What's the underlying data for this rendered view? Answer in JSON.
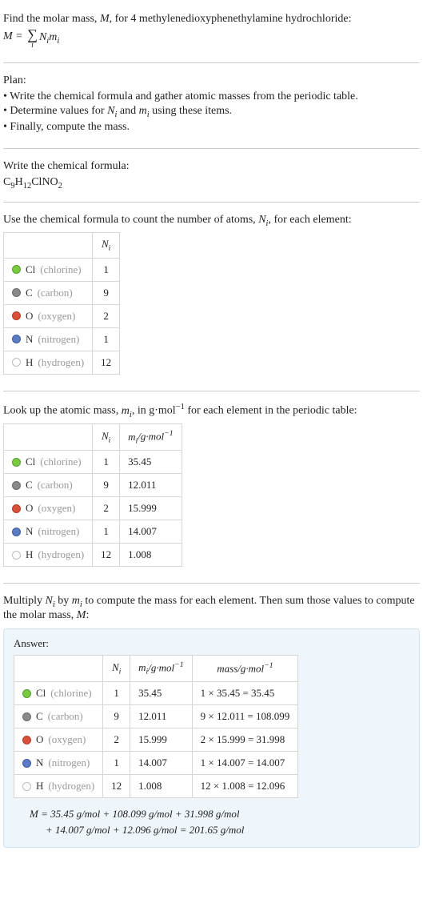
{
  "intro": {
    "line1_prefix": "Find the molar mass, ",
    "M": "M",
    "line1_mid": ", for 4 methylenedioxyphenethylamine hydrochloride:",
    "eq_lhs": "M = ",
    "eq_sigma": "∑",
    "eq_idx": "i",
    "eq_rhs_N": "N",
    "eq_rhs_m": "m"
  },
  "plan": {
    "heading": "Plan:",
    "items": [
      "Write the chemical formula and gather atomic masses from the periodic table.",
      "Determine values for N_i and m_i using these items.",
      "Finally, compute the mass."
    ],
    "item2_prefix": "Determine values for ",
    "item2_N": "N",
    "item2_and": " and ",
    "item2_m": "m",
    "item2_suffix": " using these items."
  },
  "formula_section": {
    "heading": "Write the chemical formula:",
    "formula_parts": [
      "C",
      "9",
      "H",
      "12",
      "ClNO",
      "2"
    ]
  },
  "count_section": {
    "heading_prefix": "Use the chemical formula to count the number of atoms, ",
    "heading_N": "N",
    "heading_suffix": ", for each element:",
    "col_N": "N",
    "col_i": "i"
  },
  "mass_section": {
    "heading_prefix": "Look up the atomic mass, ",
    "heading_m": "m",
    "heading_mid": ", in g·mol",
    "heading_exp": "−1",
    "heading_suffix": " for each element in the periodic table:",
    "col_m": "m",
    "col_unit_prefix": "/g·mol",
    "col_unit_exp": "−1"
  },
  "multiply_section": {
    "text_prefix": "Multiply ",
    "text_N": "N",
    "text_by": " by ",
    "text_m": "m",
    "text_mid": " to compute the mass for each element. Then sum those values to compute the molar mass, ",
    "text_M": "M",
    "text_suffix": ":"
  },
  "answer": {
    "label": "Answer:",
    "col_mass_prefix": "mass/g·mol",
    "col_mass_exp": "−1",
    "final_line1": "M = 35.45 g/mol + 108.099 g/mol + 31.998 g/mol",
    "final_line2": "+ 14.007 g/mol + 12.096 g/mol = 201.65 g/mol"
  },
  "elements": [
    {
      "sym": "Cl",
      "name": "chlorine",
      "N": "1",
      "m": "35.45",
      "mass_expr": "1 × 35.45 = 35.45",
      "fill": "#7ac943",
      "stroke": "#5a9e2e"
    },
    {
      "sym": "C",
      "name": "carbon",
      "N": "9",
      "m": "12.011",
      "mass_expr": "9 × 12.011 = 108.099",
      "fill": "#8a8a8a",
      "stroke": "#6b6b6b"
    },
    {
      "sym": "O",
      "name": "oxygen",
      "N": "2",
      "m": "15.999",
      "mass_expr": "2 × 15.999 = 31.998",
      "fill": "#d94f3a",
      "stroke": "#b03c2a"
    },
    {
      "sym": "N",
      "name": "nitrogen",
      "N": "1",
      "m": "14.007",
      "mass_expr": "1 × 14.007 = 14.007",
      "fill": "#5b7cc4",
      "stroke": "#3f5c9e"
    },
    {
      "sym": "H",
      "name": "hydrogen",
      "N": "12",
      "m": "1.008",
      "mass_expr": "12 × 1.008 = 12.096",
      "fill": "#ffffff",
      "stroke": "#bdbdbd"
    }
  ]
}
